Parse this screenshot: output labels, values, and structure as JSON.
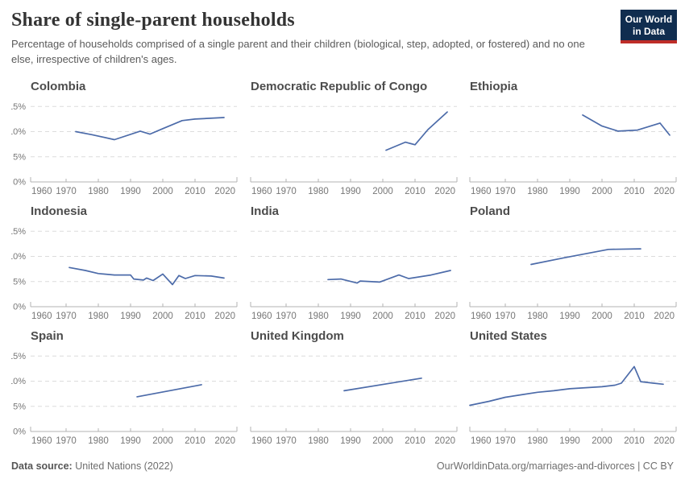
{
  "header": {
    "title": "Share of single-parent households",
    "subtitle": "Percentage of households comprised of a single parent and their children (biological, step, adopted, or fostered) and no one else, irrespective of children's ages.",
    "logo_line1": "Our World",
    "logo_line2": "in Data"
  },
  "footer": {
    "source_label": "Data source:",
    "source_value": " United Nations (2022)",
    "credit": "OurWorldinData.org/marriages-and-divorces | CC BY"
  },
  "colors": {
    "line": "#4c6ba9",
    "grid": "#dcdcdc",
    "axis": "#b3b3b3",
    "tick_label": "#777777",
    "logo_bg": "#102d4f",
    "logo_red": "#be2d28"
  },
  "axes": {
    "x_domain": [
      1959,
      2023
    ],
    "x_ticks": [
      1960,
      1970,
      1980,
      1990,
      2000,
      2010,
      2020
    ],
    "y_domain": [
      0,
      16
    ],
    "y_grid_values": [
      5,
      10,
      15
    ],
    "y_tick_labels": {
      "0": "0%",
      "5": "5%",
      "10": "10%",
      "15": "15%"
    },
    "grid_on": true
  },
  "chart_data": [
    {
      "type": "line",
      "title": "Colombia",
      "show_y_labels": true,
      "points": [
        [
          1973,
          10.0
        ],
        [
          1978,
          9.4
        ],
        [
          1985,
          8.4
        ],
        [
          1993,
          10.1
        ],
        [
          1996,
          9.5
        ],
        [
          2000,
          10.6
        ],
        [
          2006,
          12.2
        ],
        [
          2010,
          12.5
        ],
        [
          2019,
          12.8
        ]
      ]
    },
    {
      "type": "line",
      "title": "Democratic Republic of Congo",
      "show_y_labels": false,
      "points": [
        [
          2001,
          6.3
        ],
        [
          2007,
          7.9
        ],
        [
          2010,
          7.4
        ],
        [
          2014,
          10.4
        ],
        [
          2020,
          13.9
        ]
      ]
    },
    {
      "type": "line",
      "title": "Ethiopia",
      "show_y_labels": false,
      "points": [
        [
          1994,
          13.3
        ],
        [
          2000,
          11.1
        ],
        [
          2005,
          10.1
        ],
        [
          2011,
          10.3
        ],
        [
          2018,
          11.7
        ],
        [
          2021,
          9.3
        ]
      ]
    },
    {
      "type": "line",
      "title": "Indonesia",
      "show_y_labels": true,
      "points": [
        [
          1971,
          7.8
        ],
        [
          1976,
          7.2
        ],
        [
          1980,
          6.6
        ],
        [
          1985,
          6.3
        ],
        [
          1990,
          6.3
        ],
        [
          1991,
          5.5
        ],
        [
          1994,
          5.3
        ],
        [
          1995,
          5.7
        ],
        [
          1997,
          5.2
        ],
        [
          2000,
          6.5
        ],
        [
          2003,
          4.4
        ],
        [
          2005,
          6.2
        ],
        [
          2007,
          5.6
        ],
        [
          2010,
          6.2
        ],
        [
          2015,
          6.1
        ],
        [
          2019,
          5.7
        ]
      ]
    },
    {
      "type": "line",
      "title": "India",
      "show_y_labels": false,
      "points": [
        [
          1983,
          5.4
        ],
        [
          1987,
          5.5
        ],
        [
          1992,
          4.7
        ],
        [
          1993,
          5.1
        ],
        [
          1999,
          4.9
        ],
        [
          2005,
          6.3
        ],
        [
          2008,
          5.6
        ],
        [
          2015,
          6.3
        ],
        [
          2021,
          7.2
        ]
      ]
    },
    {
      "type": "line",
      "title": "Poland",
      "show_y_labels": false,
      "points": [
        [
          1978,
          8.4
        ],
        [
          1988,
          9.7
        ],
        [
          2002,
          11.4
        ],
        [
          2012,
          11.5
        ]
      ]
    },
    {
      "type": "line",
      "title": "Spain",
      "show_y_labels": true,
      "points": [
        [
          1992,
          6.9
        ],
        [
          2012,
          9.3
        ]
      ]
    },
    {
      "type": "line",
      "title": "United Kingdom",
      "show_y_labels": false,
      "points": [
        [
          1988,
          8.1
        ],
        [
          2012,
          10.6
        ]
      ]
    },
    {
      "type": "line",
      "title": "United States",
      "show_y_labels": false,
      "points": [
        [
          1959,
          5.2
        ],
        [
          1965,
          6.0
        ],
        [
          1970,
          6.8
        ],
        [
          1975,
          7.3
        ],
        [
          1980,
          7.8
        ],
        [
          1985,
          8.1
        ],
        [
          1990,
          8.5
        ],
        [
          1995,
          8.7
        ],
        [
          2000,
          8.9
        ],
        [
          2004,
          9.2
        ],
        [
          2006,
          9.6
        ],
        [
          2010,
          12.9
        ],
        [
          2012,
          9.9
        ],
        [
          2016,
          9.6
        ],
        [
          2019,
          9.4
        ]
      ]
    }
  ]
}
